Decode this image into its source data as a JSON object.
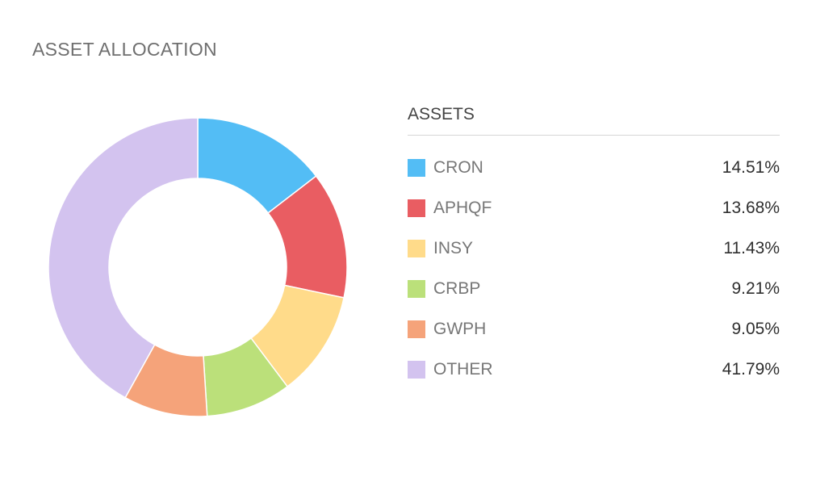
{
  "title": "ASSET ALLOCATION",
  "legend": {
    "header": "ASSETS"
  },
  "chart_data": {
    "type": "pie",
    "donut": true,
    "title": "ASSET ALLOCATION",
    "legend_title": "ASSETS",
    "legend_position": "right",
    "slices": [
      {
        "label": "CRON",
        "value": 14.51,
        "display": "14.51%",
        "color": "#53bdf5"
      },
      {
        "label": "APHQF",
        "value": 13.68,
        "display": "13.68%",
        "color": "#e95d62"
      },
      {
        "label": "INSY",
        "value": 11.43,
        "display": "11.43%",
        "color": "#ffdb8a"
      },
      {
        "label": "CRBP",
        "value": 9.21,
        "display": "9.21%",
        "color": "#bbe07a"
      },
      {
        "label": "GWPH",
        "value": 9.05,
        "display": "9.05%",
        "color": "#f5a37a"
      },
      {
        "label": "OTHER",
        "value": 41.79,
        "display": "41.79%",
        "color": "#d3c3ef"
      }
    ]
  }
}
